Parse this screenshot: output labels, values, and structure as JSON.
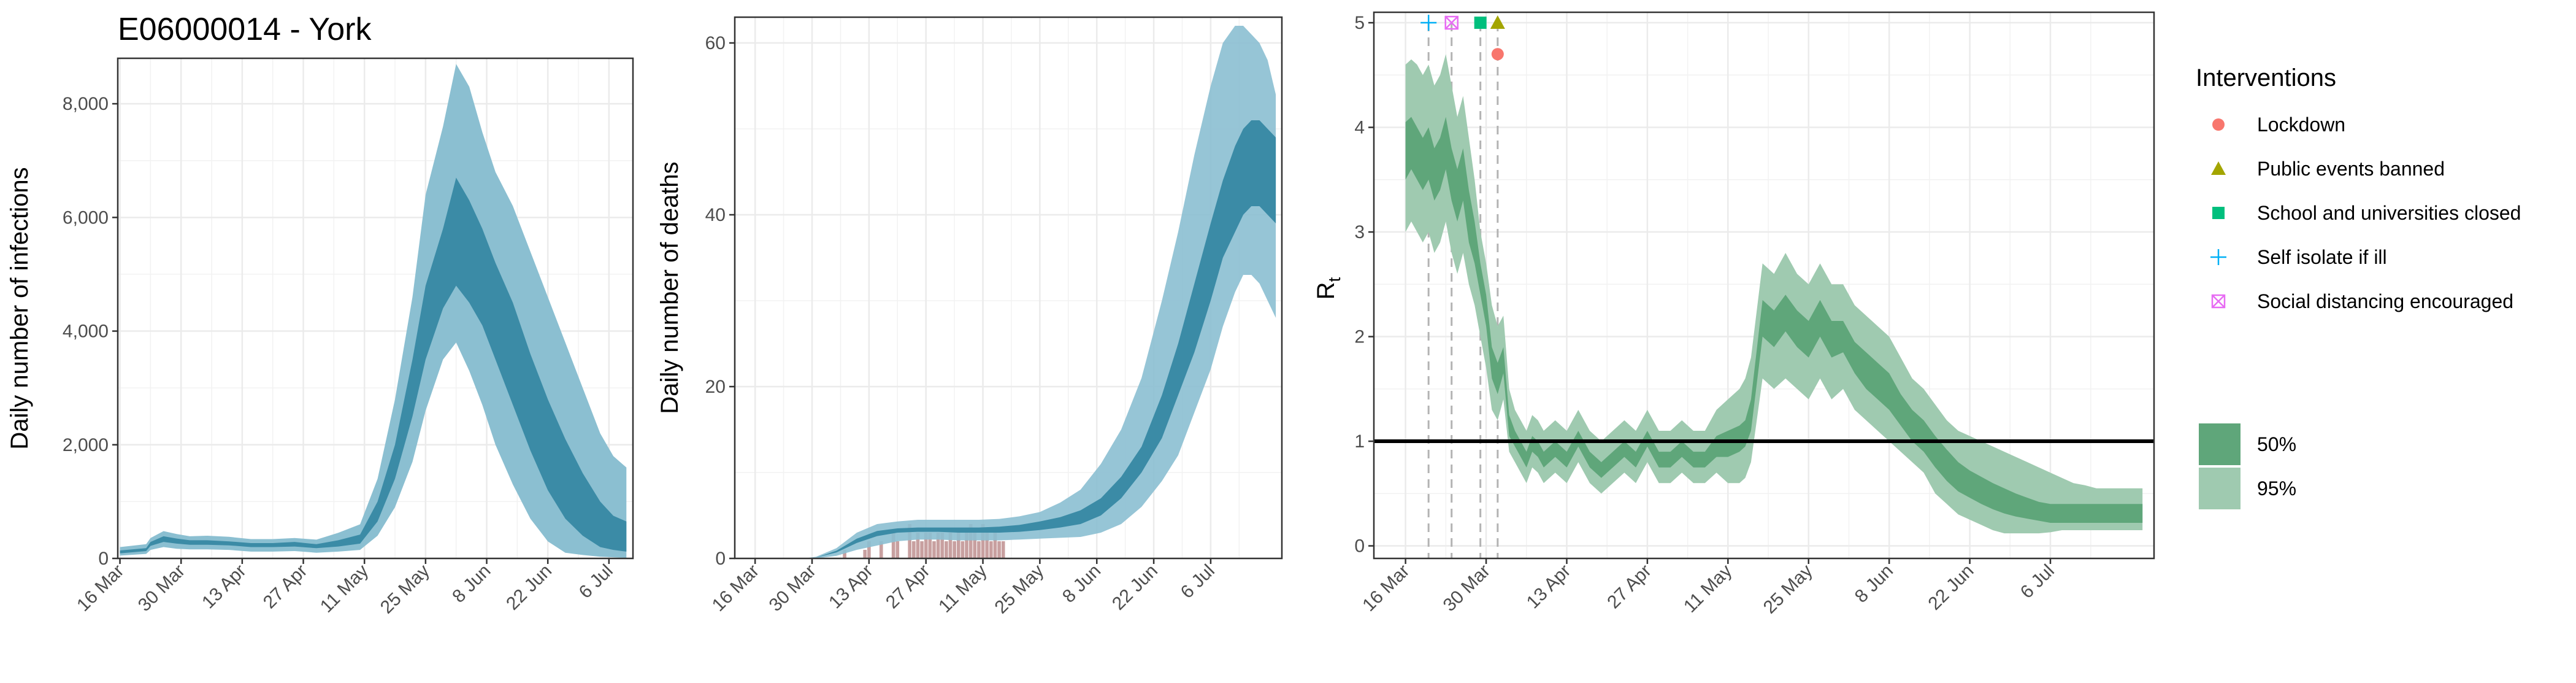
{
  "title": "E06000014 - York",
  "colors": {
    "infections_outer": "#8bbfd1",
    "infections_inner": "#3b8ba6",
    "deaths_outer": "#8bbfd1",
    "deaths_inner": "#3b8ba6",
    "observed_bars": "#c8a0a0",
    "rt_50": "#5fa67a",
    "rt_95": "#9fcab0",
    "reference_line": "#000000",
    "lockdown": "#f8766d",
    "public_events": "#a3a500",
    "school": "#00bf7d",
    "self_isolate": "#00b0f6",
    "social_distancing": "#e76bf3"
  },
  "chart_data": [
    {
      "type": "area",
      "ylabel": "Daily number of infections",
      "xlabel": "",
      "x_tick_labels": [
        "16 Mar",
        "30 Mar",
        "13 Apr",
        "27 Apr",
        "11 May",
        "25 May",
        "8 Jun",
        "22 Jun",
        "6 Jul"
      ],
      "y_tick_labels": [
        "0",
        "2,000",
        "4,000",
        "6,000",
        "8,000"
      ],
      "y_ticks": [
        0,
        2000,
        4000,
        6000,
        8000
      ],
      "ylim": [
        0,
        8800
      ],
      "x_day_range": [
        -0.5,
        117.5
      ],
      "grid": true,
      "series": [
        {
          "band": "95%",
          "x": [
            0,
            6,
            7,
            10,
            13,
            16,
            20,
            25,
            30,
            35,
            40,
            45,
            50,
            55,
            59,
            63,
            67,
            70,
            74,
            77,
            80,
            83,
            86,
            90,
            94,
            98,
            102,
            106,
            110,
            113,
            116
          ],
          "low": [
            50,
            80,
            150,
            200,
            170,
            160,
            160,
            150,
            120,
            120,
            130,
            100,
            120,
            150,
            400,
            900,
            1700,
            2600,
            3500,
            3800,
            3300,
            2700,
            2000,
            1300,
            700,
            300,
            100,
            60,
            30,
            20,
            10
          ],
          "high": [
            200,
            250,
            360,
            480,
            430,
            390,
            400,
            380,
            340,
            340,
            360,
            330,
            450,
            600,
            1400,
            2800,
            4600,
            6400,
            7600,
            8700,
            8300,
            7500,
            6800,
            6200,
            5400,
            4600,
            3800,
            3000,
            2200,
            1800,
            1600
          ]
        },
        {
          "band": "50%",
          "x": [
            0,
            6,
            7,
            10,
            13,
            16,
            20,
            25,
            30,
            35,
            40,
            45,
            50,
            55,
            59,
            63,
            67,
            70,
            74,
            77,
            80,
            83,
            86,
            90,
            94,
            98,
            102,
            106,
            110,
            113,
            116
          ],
          "low": [
            90,
            130,
            220,
            290,
            260,
            240,
            240,
            230,
            200,
            200,
            210,
            180,
            210,
            260,
            650,
            1400,
            2500,
            3500,
            4400,
            4800,
            4500,
            4100,
            3500,
            2700,
            1900,
            1200,
            700,
            400,
            200,
            150,
            120
          ],
          "high": [
            140,
            180,
            290,
            390,
            350,
            320,
            320,
            300,
            270,
            270,
            290,
            250,
            320,
            420,
            1000,
            2000,
            3500,
            4800,
            5800,
            6700,
            6300,
            5800,
            5200,
            4500,
            3600,
            2800,
            2100,
            1500,
            1000,
            750,
            650
          ]
        }
      ]
    },
    {
      "type": "area",
      "ylabel": "Daily number of deaths",
      "xlabel": "",
      "x_tick_labels": [
        "16 Mar",
        "30 Mar",
        "13 Apr",
        "27 Apr",
        "11 May",
        "25 May",
        "8 Jun",
        "22 Jun",
        "6 Jul"
      ],
      "y_tick_labels": [
        "0",
        "20",
        "40",
        "60"
      ],
      "y_ticks": [
        0,
        20,
        40,
        60
      ],
      "ylim": [
        0,
        63
      ],
      "x_day_range": [
        -5,
        129.5
      ],
      "grid": true,
      "series": [
        {
          "band": "95%",
          "x": [
            12,
            15,
            20,
            25,
            30,
            35,
            40,
            45,
            50,
            55,
            60,
            65,
            70,
            75,
            80,
            85,
            90,
            95,
            100,
            104,
            108,
            112,
            115,
            118,
            120,
            122,
            124,
            126,
            128
          ],
          "low": [
            0,
            0,
            0.3,
            1,
            1.5,
            2,
            2.2,
            2.2,
            2.1,
            2.1,
            2.1,
            2.2,
            2.3,
            2.4,
            2.5,
            3,
            4,
            6,
            9,
            12,
            17,
            22,
            27,
            31,
            33,
            33,
            32,
            30,
            28
          ],
          "high": [
            0,
            0.2,
            1.2,
            3,
            4,
            4.3,
            4.5,
            4.5,
            4.5,
            4.5,
            4.6,
            4.9,
            5.4,
            6.5,
            8,
            11,
            15,
            21,
            30,
            38,
            47,
            55,
            60,
            62,
            62,
            61,
            60,
            58,
            54
          ]
        },
        {
          "band": "50%",
          "x": [
            12,
            15,
            20,
            25,
            30,
            35,
            40,
            45,
            50,
            55,
            60,
            65,
            70,
            75,
            80,
            85,
            90,
            95,
            100,
            104,
            108,
            112,
            115,
            118,
            120,
            122,
            124,
            126,
            128
          ],
          "low": [
            0,
            0.1,
            0.7,
            1.8,
            2.6,
            3,
            3.1,
            3.1,
            3,
            3,
            3,
            3.1,
            3.3,
            3.6,
            4,
            5,
            7,
            10,
            14,
            19,
            24,
            30,
            35,
            38,
            40,
            41,
            41,
            40,
            39
          ],
          "high": [
            0,
            0.1,
            0.9,
            2.3,
            3.2,
            3.5,
            3.6,
            3.6,
            3.6,
            3.6,
            3.7,
            3.9,
            4.3,
            4.8,
            5.6,
            7,
            9.5,
            13,
            19,
            25,
            32,
            39,
            44,
            48,
            50,
            51,
            51,
            50,
            49
          ]
        }
      ],
      "observed_deaths": {
        "days": [
          22,
          27,
          28,
          31,
          34,
          35,
          38,
          39,
          40,
          41,
          42,
          43,
          44,
          45,
          46,
          47,
          48,
          49,
          50,
          51,
          52,
          53,
          54,
          55,
          56,
          57,
          58,
          59,
          60,
          61
        ],
        "values": [
          1,
          1,
          2,
          2,
          3,
          2,
          4,
          2,
          3,
          2,
          3,
          3,
          2,
          3,
          3,
          2,
          3,
          2,
          3,
          2,
          3,
          4,
          3,
          2,
          4,
          3,
          2,
          3,
          2,
          2
        ]
      }
    },
    {
      "type": "area",
      "ylabel": "Rt",
      "xlabel": "",
      "x_tick_labels": [
        "16 Mar",
        "30 Mar",
        "13 Apr",
        "27 Apr",
        "11 May",
        "25 May",
        "8 Jun",
        "22 Jun",
        "6 Jul"
      ],
      "y_tick_labels": [
        "0",
        "1",
        "2",
        "3",
        "4",
        "5"
      ],
      "y_ticks": [
        0,
        1,
        2,
        3,
        4,
        5
      ],
      "ylim": [
        -0.12,
        5.1
      ],
      "x_day_range": [
        -5.5,
        130
      ],
      "grid": true,
      "reference_line": 1,
      "series": [
        {
          "band": "95%",
          "x": [
            0,
            1,
            2,
            3,
            4,
            5,
            6,
            7,
            8,
            9,
            10,
            11,
            12,
            13,
            14,
            15,
            16,
            17,
            18,
            19,
            20,
            21,
            22,
            23,
            24,
            26,
            28,
            30,
            32,
            34,
            36,
            38,
            40,
            42,
            44,
            46,
            48,
            50,
            52,
            54,
            56,
            58,
            59,
            60,
            62,
            64,
            66,
            68,
            70,
            72,
            74,
            76,
            78,
            80,
            82,
            84,
            86,
            88,
            90,
            92,
            94,
            96,
            98,
            100,
            102,
            104,
            106,
            108,
            110,
            112,
            114,
            116,
            118,
            120,
            122,
            124,
            126,
            128
          ],
          "low": [
            3.0,
            3.1,
            3.0,
            2.9,
            3.0,
            2.8,
            2.9,
            3.1,
            2.8,
            2.6,
            2.8,
            2.5,
            2.3,
            2.0,
            1.7,
            1.3,
            1.2,
            1.4,
            0.9,
            0.8,
            0.7,
            0.6,
            0.75,
            0.7,
            0.6,
            0.7,
            0.6,
            0.8,
            0.6,
            0.5,
            0.6,
            0.7,
            0.6,
            0.8,
            0.6,
            0.6,
            0.7,
            0.6,
            0.6,
            0.7,
            0.6,
            0.6,
            0.65,
            0.8,
            1.6,
            1.5,
            1.6,
            1.5,
            1.4,
            1.6,
            1.4,
            1.5,
            1.3,
            1.2,
            1.1,
            1.0,
            0.9,
            0.8,
            0.7,
            0.5,
            0.4,
            0.3,
            0.25,
            0.2,
            0.15,
            0.12,
            0.12,
            0.12,
            0.12,
            0.13,
            0.15,
            0.15,
            0.15,
            0.15,
            0.15,
            0.15,
            0.15,
            0.15
          ],
          "high": [
            4.6,
            4.65,
            4.6,
            4.5,
            4.6,
            4.4,
            4.5,
            4.7,
            4.4,
            4.1,
            4.3,
            3.9,
            3.5,
            3.0,
            2.7,
            2.3,
            2.1,
            2.2,
            1.5,
            1.3,
            1.2,
            1.1,
            1.25,
            1.2,
            1.1,
            1.2,
            1.1,
            1.3,
            1.1,
            1.0,
            1.1,
            1.2,
            1.1,
            1.3,
            1.1,
            1.1,
            1.2,
            1.1,
            1.1,
            1.3,
            1.4,
            1.5,
            1.6,
            1.8,
            2.7,
            2.6,
            2.8,
            2.6,
            2.5,
            2.7,
            2.5,
            2.5,
            2.3,
            2.2,
            2.1,
            2.0,
            1.8,
            1.6,
            1.5,
            1.35,
            1.2,
            1.1,
            1.05,
            1.0,
            0.95,
            0.9,
            0.85,
            0.8,
            0.75,
            0.7,
            0.65,
            0.6,
            0.58,
            0.55,
            0.55,
            0.55,
            0.55,
            0.55
          ]
        },
        {
          "band": "50%",
          "x": [
            0,
            1,
            2,
            3,
            4,
            5,
            6,
            7,
            8,
            9,
            10,
            11,
            12,
            13,
            14,
            15,
            16,
            17,
            18,
            19,
            20,
            21,
            22,
            23,
            24,
            26,
            28,
            30,
            32,
            34,
            36,
            38,
            40,
            42,
            44,
            46,
            48,
            50,
            52,
            54,
            56,
            58,
            59,
            60,
            62,
            64,
            66,
            68,
            70,
            72,
            74,
            76,
            78,
            80,
            82,
            84,
            86,
            88,
            90,
            92,
            94,
            96,
            98,
            100,
            102,
            104,
            106,
            108,
            110,
            112,
            114,
            116,
            118,
            120,
            122,
            124,
            126,
            128
          ],
          "low": [
            3.5,
            3.6,
            3.5,
            3.4,
            3.5,
            3.3,
            3.4,
            3.6,
            3.3,
            3.1,
            3.3,
            2.9,
            2.7,
            2.4,
            2.1,
            1.6,
            1.45,
            1.65,
            1.05,
            0.95,
            0.85,
            0.75,
            0.9,
            0.85,
            0.75,
            0.85,
            0.75,
            0.95,
            0.75,
            0.65,
            0.75,
            0.85,
            0.75,
            0.95,
            0.75,
            0.75,
            0.85,
            0.75,
            0.75,
            0.85,
            0.85,
            0.9,
            0.95,
            1.1,
            2.0,
            1.9,
            2.05,
            1.9,
            1.8,
            2.0,
            1.8,
            1.85,
            1.65,
            1.5,
            1.4,
            1.3,
            1.15,
            1.0,
            0.9,
            0.75,
            0.62,
            0.52,
            0.46,
            0.4,
            0.35,
            0.31,
            0.28,
            0.26,
            0.24,
            0.22,
            0.22,
            0.22,
            0.22,
            0.22,
            0.22,
            0.22,
            0.22,
            0.22
          ],
          "high": [
            4.05,
            4.1,
            4.0,
            3.9,
            4.0,
            3.8,
            3.9,
            4.1,
            3.8,
            3.6,
            3.8,
            3.4,
            3.1,
            2.7,
            2.4,
            1.9,
            1.75,
            1.9,
            1.25,
            1.1,
            1.0,
            0.9,
            1.05,
            1.0,
            0.9,
            1.0,
            0.9,
            1.1,
            0.9,
            0.8,
            0.9,
            1.0,
            0.9,
            1.1,
            0.9,
            0.9,
            1.0,
            0.9,
            0.9,
            1.05,
            1.1,
            1.15,
            1.2,
            1.4,
            2.35,
            2.25,
            2.4,
            2.25,
            2.15,
            2.35,
            2.15,
            2.15,
            1.95,
            1.85,
            1.75,
            1.65,
            1.45,
            1.3,
            1.2,
            1.05,
            0.92,
            0.8,
            0.72,
            0.66,
            0.6,
            0.55,
            0.5,
            0.46,
            0.42,
            0.4,
            0.4,
            0.4,
            0.4,
            0.4,
            0.4,
            0.4,
            0.4,
            0.4
          ]
        }
      ],
      "interventions": [
        {
          "name": "Self isolate if ill",
          "day": 4,
          "marker_y": 5.0
        },
        {
          "name": "Social distancing encouraged",
          "day": 8,
          "marker_y": 5.0
        },
        {
          "name": "School and universities closed",
          "day": 13,
          "marker_y": 5.0
        },
        {
          "name": "Public events banned",
          "day": 16,
          "marker_y": 5.0
        },
        {
          "name": "Lockdown",
          "day": 16,
          "marker_y": 4.7
        }
      ]
    }
  ],
  "legend": {
    "title": "Interventions",
    "items": [
      {
        "label": "Lockdown",
        "icon": "circle-icon"
      },
      {
        "label": "Public events banned",
        "icon": "triangle-icon"
      },
      {
        "label": "School and universities closed",
        "icon": "square-icon"
      },
      {
        "label": "Self isolate if ill",
        "icon": "plus-icon"
      },
      {
        "label": "Social distancing encouraged",
        "icon": "boxed-x-icon"
      }
    ],
    "bands": [
      {
        "label": "50%"
      },
      {
        "label": "95%"
      }
    ]
  }
}
